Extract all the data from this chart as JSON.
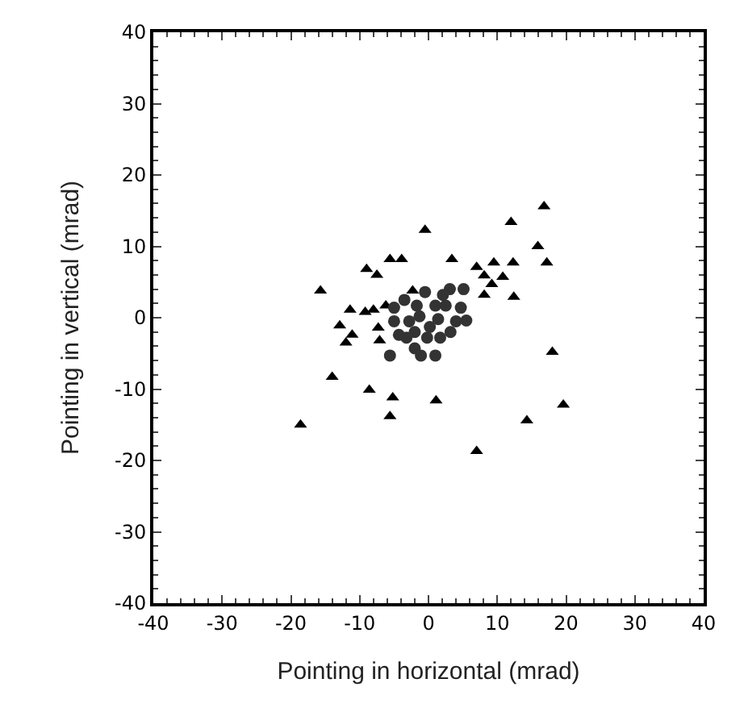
{
  "chart_data": {
    "type": "scatter",
    "xlabel": "Pointing in horizontal (mrad)",
    "ylabel": "Pointing in vertical (mrad)",
    "xlim": [
      -40,
      40
    ],
    "ylim": [
      -40,
      40
    ],
    "xticks": [
      -40,
      -30,
      -20,
      -10,
      0,
      10,
      20,
      30,
      40
    ],
    "yticks": [
      -40,
      -30,
      -20,
      -10,
      0,
      10,
      20,
      30,
      40
    ],
    "grid": false,
    "series": [
      {
        "color": "#000000",
        "marker": "triangle",
        "x": [
          16.8,
          12.0,
          -0.5,
          15.9,
          17.2,
          12.3,
          9.5,
          3.4,
          -5.6,
          -3.9,
          -9.0,
          -7.5,
          7.0,
          8.1,
          9.2,
          10.8,
          8.1,
          12.4,
          -15.7,
          -2.3,
          -6.2,
          -11.4,
          -9.2,
          -8.0,
          -12.9,
          -11.1,
          -12.0,
          -7.3,
          -7.1,
          -14.0,
          -8.6,
          -5.2,
          -5.6,
          1.1,
          -18.6,
          7.0,
          14.3,
          19.6,
          18.0
        ],
        "values": [
          15.6,
          13.4,
          12.3,
          10.0,
          7.7,
          7.7,
          7.7,
          8.2,
          8.2,
          8.2,
          6.8,
          6.0,
          7.1,
          5.9,
          4.7,
          5.7,
          3.2,
          2.9,
          3.8,
          3.8,
          1.7,
          1.1,
          0.8,
          1.1,
          -1.1,
          -2.4,
          -3.5,
          -1.4,
          -3.2,
          -8.3,
          -10.1,
          -11.2,
          -13.8,
          -11.6,
          -15.0,
          -18.7,
          -14.4,
          -12.2,
          -4.8
        ]
      },
      {
        "color": "#333333",
        "marker": "circle",
        "x": [
          -5.6,
          -1.1,
          1.0,
          -2.0,
          3.1,
          5.1,
          -0.5,
          -3.5,
          -2.8,
          -5.0,
          -4.3,
          1.7,
          4.0,
          5.5,
          1.0,
          2.5,
          -1.3,
          0.2,
          -2.0,
          3.2,
          2.1,
          -1.7,
          -3.2,
          4.7,
          -0.2,
          1.4,
          -5.0
        ],
        "values": [
          -5.3,
          -5.3,
          -5.3,
          -4.3,
          4.0,
          4.0,
          3.6,
          2.5,
          -0.5,
          -0.5,
          -2.4,
          -2.8,
          -0.5,
          -0.4,
          1.7,
          1.7,
          0.2,
          -1.3,
          -2.0,
          -2.0,
          3.2,
          1.7,
          -2.8,
          1.4,
          -2.8,
          -0.2,
          1.4
        ]
      }
    ]
  }
}
